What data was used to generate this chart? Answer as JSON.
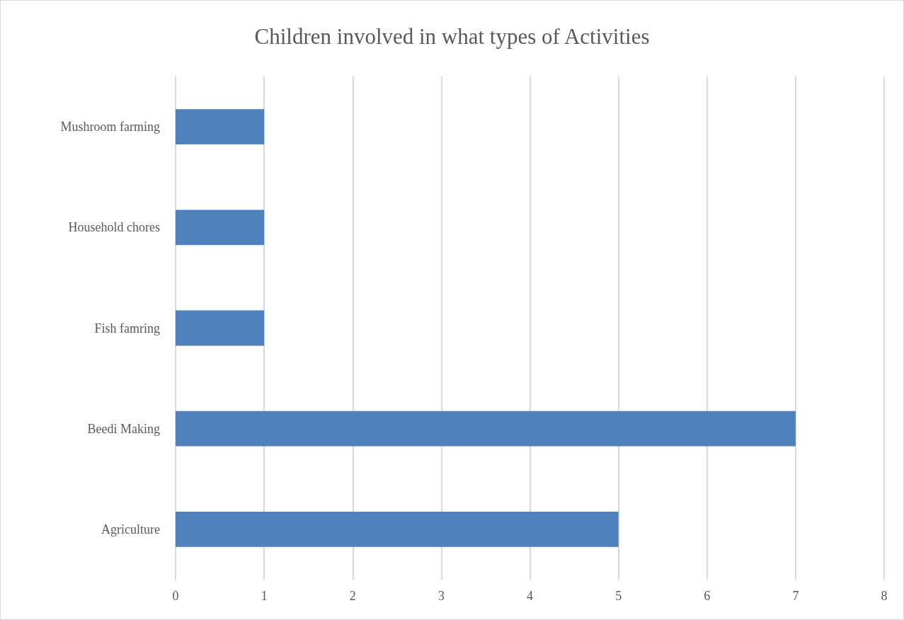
{
  "chart_data": {
    "type": "bar",
    "orientation": "horizontal",
    "title": "Children involved in what types of Activities",
    "categories": [
      "Mushroom farming",
      "Household chores",
      "Fish famring",
      "Beedi Making",
      "Agriculture"
    ],
    "values": [
      1,
      1,
      1,
      7,
      5
    ],
    "color": "#4f81bd",
    "xlim": [
      0,
      8
    ],
    "xticks": [
      0,
      1,
      2,
      3,
      4,
      5,
      6,
      7,
      8
    ],
    "grid": "x"
  }
}
